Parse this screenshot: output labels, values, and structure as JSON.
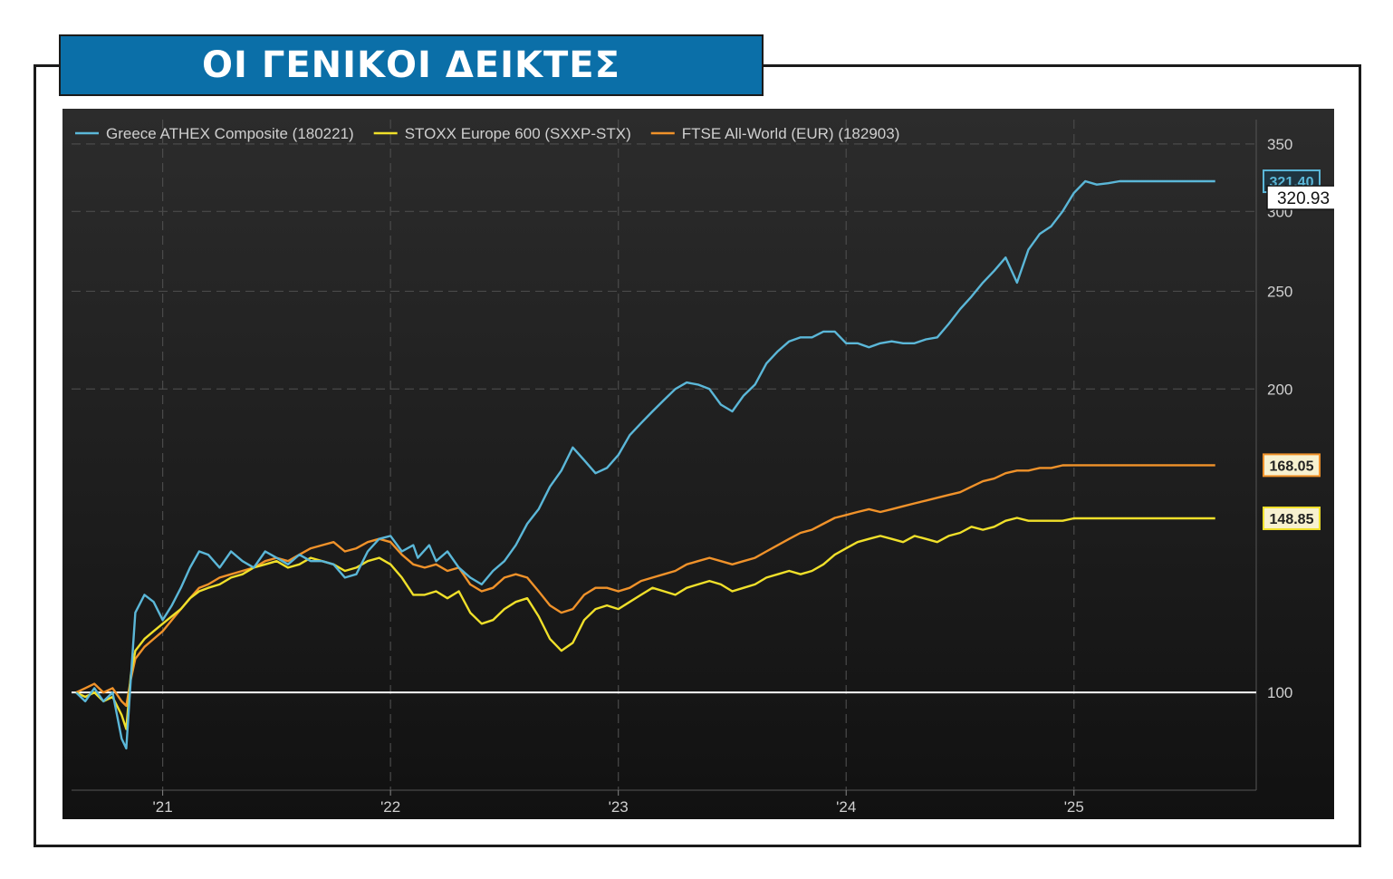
{
  "header": {
    "title": "ΟΙ ΓΕΝΙΚΟΙ ΔΕΙΚΤΕΣ"
  },
  "chart_data": {
    "type": "line",
    "log_scale": true,
    "grid": true,
    "legend_position": "top-left",
    "background": "#262626",
    "baseline": 100,
    "x_ticks": [
      {
        "label": "'21",
        "t": 2021.0
      },
      {
        "label": "'22",
        "t": 2022.0
      },
      {
        "label": "'23",
        "t": 2023.0
      },
      {
        "label": "'24",
        "t": 2024.0
      },
      {
        "label": "'25",
        "t": 2025.0
      }
    ],
    "y_ticks": [
      100,
      200,
      250,
      300,
      350
    ],
    "y_range": [
      80,
      370
    ],
    "x_range": [
      2020.6,
      2025.8
    ],
    "series": [
      {
        "name": "Greece ATHEX Composite (180221)",
        "color": "#5bb7d8",
        "last_label": "321.40",
        "x": [
          2020.62,
          2020.66,
          2020.7,
          2020.74,
          2020.78,
          2020.82,
          2020.84,
          2020.86,
          2020.88,
          2020.92,
          2020.96,
          2021.0,
          2021.04,
          2021.08,
          2021.12,
          2021.16,
          2021.2,
          2021.25,
          2021.3,
          2021.35,
          2021.4,
          2021.45,
          2021.5,
          2021.55,
          2021.6,
          2021.65,
          2021.7,
          2021.75,
          2021.8,
          2021.85,
          2021.9,
          2021.95,
          2022.0,
          2022.05,
          2022.1,
          2022.12,
          2022.17,
          2022.2,
          2022.25,
          2022.3,
          2022.35,
          2022.4,
          2022.45,
          2022.5,
          2022.55,
          2022.6,
          2022.65,
          2022.7,
          2022.75,
          2022.8,
          2022.85,
          2022.9,
          2022.95,
          2023.0,
          2023.05,
          2023.1,
          2023.15,
          2023.2,
          2023.25,
          2023.3,
          2023.35,
          2023.4,
          2023.45,
          2023.5,
          2023.55,
          2023.6,
          2023.65,
          2023.7,
          2023.75,
          2023.8,
          2023.85,
          2023.9,
          2023.95,
          2024.0,
          2024.05,
          2024.1,
          2024.15,
          2024.2,
          2024.25,
          2024.3,
          2024.35,
          2024.4,
          2024.45,
          2024.5,
          2024.55,
          2024.6,
          2024.65,
          2024.7,
          2024.75,
          2024.8,
          2024.85,
          2024.9,
          2024.95,
          2025.0,
          2025.05,
          2025.1,
          2025.15,
          2025.2,
          2025.23,
          2025.27,
          2025.3,
          2025.35,
          2025.4,
          2025.45,
          2025.5,
          2025.55,
          2025.6,
          2025.62
        ],
        "y": [
          100,
          98,
          101,
          98,
          100,
          90,
          88,
          103,
          120,
          125,
          123,
          118,
          122,
          127,
          133,
          138,
          137,
          133,
          138,
          135,
          133,
          138,
          136,
          134,
          137,
          135,
          135,
          134,
          130,
          131,
          138,
          142,
          143,
          138,
          140,
          136,
          140,
          135,
          138,
          133,
          130,
          128,
          132,
          135,
          140,
          147,
          152,
          160,
          166,
          175,
          170,
          165,
          167,
          172,
          180,
          185,
          190,
          195,
          200,
          203,
          202,
          200,
          193,
          190,
          197,
          202,
          212,
          218,
          223,
          225,
          225,
          228,
          228,
          222,
          222,
          220,
          222,
          223,
          222,
          222,
          224,
          225,
          232,
          240,
          247,
          255,
          262,
          270,
          255,
          275,
          285,
          290,
          300,
          313,
          321.4,
          319,
          320,
          321.4,
          321.4,
          321.4,
          321.4,
          321.4,
          321.4,
          321.4,
          321.4,
          321.4,
          321.4,
          321.4
        ]
      },
      {
        "name": "STOXX Europe 600 (SXXP-STX)",
        "color": "#f0e02a",
        "last_label": "148.85",
        "x": [
          2020.62,
          2020.66,
          2020.7,
          2020.74,
          2020.78,
          2020.82,
          2020.84,
          2020.86,
          2020.88,
          2020.92,
          2020.96,
          2021.0,
          2021.04,
          2021.08,
          2021.12,
          2021.16,
          2021.2,
          2021.25,
          2021.3,
          2021.35,
          2021.4,
          2021.45,
          2021.5,
          2021.55,
          2021.6,
          2021.65,
          2021.7,
          2021.75,
          2021.8,
          2021.85,
          2021.9,
          2021.95,
          2022.0,
          2022.05,
          2022.1,
          2022.15,
          2022.2,
          2022.25,
          2022.3,
          2022.35,
          2022.4,
          2022.45,
          2022.5,
          2022.55,
          2022.6,
          2022.65,
          2022.7,
          2022.75,
          2022.8,
          2022.85,
          2022.9,
          2022.95,
          2023.0,
          2023.05,
          2023.1,
          2023.15,
          2023.2,
          2023.25,
          2023.3,
          2023.35,
          2023.4,
          2023.45,
          2023.5,
          2023.55,
          2023.6,
          2023.65,
          2023.7,
          2023.75,
          2023.8,
          2023.85,
          2023.9,
          2023.95,
          2024.0,
          2024.05,
          2024.1,
          2024.15,
          2024.2,
          2024.25,
          2024.3,
          2024.35,
          2024.4,
          2024.45,
          2024.5,
          2024.55,
          2024.6,
          2024.65,
          2024.7,
          2024.75,
          2024.8,
          2024.85,
          2024.9,
          2024.95,
          2025.0,
          2025.05,
          2025.1,
          2025.15,
          2025.2,
          2025.23,
          2025.27,
          2025.3,
          2025.35,
          2025.4,
          2025.45,
          2025.5,
          2025.55,
          2025.6,
          2025.62
        ],
        "y": [
          100,
          99,
          100,
          98,
          99,
          95,
          92,
          104,
          110,
          113,
          115,
          117,
          119,
          121,
          124,
          126,
          127,
          128,
          130,
          131,
          133,
          134,
          135,
          133,
          134,
          136,
          135,
          134,
          132,
          133,
          135,
          136,
          134,
          130,
          125,
          125,
          126,
          124,
          126,
          120,
          117,
          118,
          121,
          123,
          124,
          119,
          113,
          110,
          112,
          118,
          121,
          122,
          121,
          123,
          125,
          127,
          126,
          125,
          127,
          128,
          129,
          128,
          126,
          127,
          128,
          130,
          131,
          132,
          131,
          132,
          134,
          137,
          139,
          141,
          142,
          143,
          142,
          141,
          143,
          142,
          141,
          143,
          144,
          146,
          145,
          146,
          148,
          149,
          148,
          148,
          148,
          148,
          148.85,
          148.85,
          148.85,
          148.85,
          148.85,
          148.85,
          148.85,
          148.85,
          148.85,
          148.85,
          148.85,
          148.85,
          148.85,
          148.85,
          148.85
        ]
      },
      {
        "name": "FTSE All-World (EUR) (182903)",
        "color": "#f0922a",
        "last_label": "168.05",
        "x": [
          2020.62,
          2020.66,
          2020.7,
          2020.74,
          2020.78,
          2020.82,
          2020.84,
          2020.86,
          2020.88,
          2020.92,
          2020.96,
          2021.0,
          2021.04,
          2021.08,
          2021.12,
          2021.16,
          2021.2,
          2021.25,
          2021.3,
          2021.35,
          2021.4,
          2021.45,
          2021.5,
          2021.55,
          2021.6,
          2021.65,
          2021.7,
          2021.75,
          2021.8,
          2021.85,
          2021.9,
          2021.95,
          2022.0,
          2022.05,
          2022.1,
          2022.15,
          2022.2,
          2022.25,
          2022.3,
          2022.35,
          2022.4,
          2022.45,
          2022.5,
          2022.55,
          2022.6,
          2022.65,
          2022.7,
          2022.75,
          2022.8,
          2022.85,
          2022.9,
          2022.95,
          2023.0,
          2023.05,
          2023.1,
          2023.15,
          2023.2,
          2023.25,
          2023.3,
          2023.35,
          2023.4,
          2023.45,
          2023.5,
          2023.55,
          2023.6,
          2023.65,
          2023.7,
          2023.75,
          2023.8,
          2023.85,
          2023.9,
          2023.95,
          2024.0,
          2024.05,
          2024.1,
          2024.15,
          2024.2,
          2024.25,
          2024.3,
          2024.35,
          2024.4,
          2024.45,
          2024.5,
          2024.55,
          2024.6,
          2024.65,
          2024.7,
          2024.75,
          2024.8,
          2024.85,
          2024.9,
          2024.95,
          2025.0,
          2025.05,
          2025.1,
          2025.15,
          2025.2,
          2025.23,
          2025.27,
          2025.3,
          2025.35,
          2025.4,
          2025.45,
          2025.5,
          2025.55,
          2025.6,
          2025.62
        ],
        "y": [
          100,
          101,
          102,
          100,
          101,
          98,
          97,
          103,
          108,
          111,
          113,
          115,
          118,
          121,
          124,
          127,
          128,
          130,
          131,
          132,
          133,
          135,
          136,
          135,
          137,
          139,
          140,
          141,
          138,
          139,
          141,
          142,
          141,
          137,
          134,
          133,
          134,
          132,
          133,
          128,
          126,
          127,
          130,
          131,
          130,
          126,
          122,
          120,
          121,
          125,
          127,
          127,
          126,
          127,
          129,
          130,
          131,
          132,
          134,
          135,
          136,
          135,
          134,
          135,
          136,
          138,
          140,
          142,
          144,
          145,
          147,
          149,
          150,
          151,
          152,
          151,
          152,
          153,
          154,
          155,
          156,
          157,
          158,
          160,
          162,
          163,
          165,
          166,
          166,
          167,
          167,
          168,
          168.05,
          168.05,
          168.05,
          168.05,
          168.05,
          168.05,
          168.05,
          168.05,
          168.05,
          168.05,
          168.05,
          168.05,
          168.05,
          168.05,
          168.05
        ]
      }
    ],
    "extra_label": "320.93"
  }
}
